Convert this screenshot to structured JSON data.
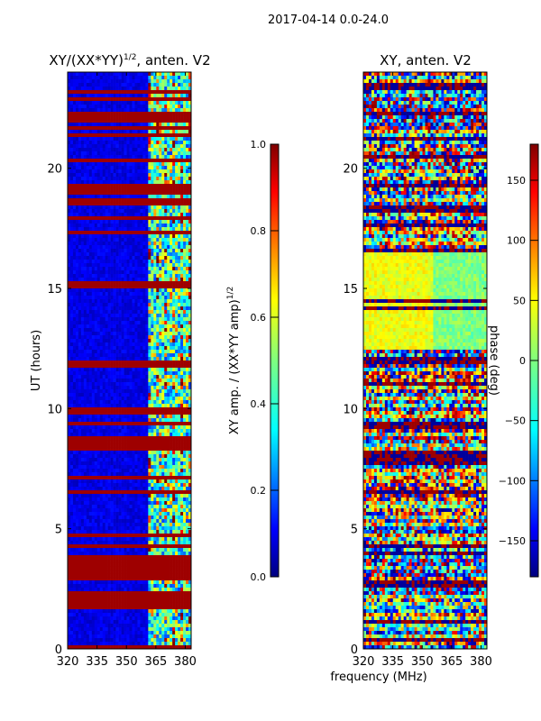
{
  "figure": {
    "suptitle": "2017-04-14 0.0-24.0",
    "shared_xlabel": "frequency (MHz)"
  },
  "colors": {
    "jet_dark_blue": "#00007f",
    "jet_blue": "#0000ff",
    "jet_cyan": "#00ffff",
    "jet_yellow": "#ffff00",
    "jet_red": "#ff0000",
    "jet_dark_red": "#7f0000"
  },
  "chart_data": [
    {
      "type": "heatmap",
      "title_main": "XY/(XX*YY)",
      "title_sup": "1/2",
      "title_tail": ", anten. V2",
      "xlabel": "",
      "ylabel": "UT (hours)",
      "xlim": [
        320,
        383
      ],
      "ylim": [
        0,
        24
      ],
      "xticks": [
        320,
        335,
        350,
        365,
        380
      ],
      "yticks": [
        0,
        5,
        10,
        15,
        20
      ],
      "colorbar": {
        "label_main": "XY amp. / (XX*YY amp)",
        "label_sup": "1/2",
        "range": [
          0.0,
          1.0
        ],
        "ticks": [
          "0.0",
          "0.2",
          "0.4",
          "0.6",
          "0.8",
          "1.0"
        ]
      },
      "features": {
        "low_band_mhz": [
          320,
          361
        ],
        "high_band_mhz": [
          361,
          383
        ],
        "high_band_level": 0.45,
        "flagged_hours": [
          0.05,
          1.7,
          1.9,
          2.05,
          2.2,
          2.35,
          3.0,
          3.3,
          3.6,
          3.75,
          4.3,
          4.7,
          6.5,
          7.1,
          8.3,
          8.45,
          8.6,
          8.75,
          9.4,
          9.9,
          11.8,
          11.95,
          15.1,
          15.2,
          17.3,
          17.9,
          18.6,
          19.0,
          19.2,
          19.3,
          20.3,
          21.4,
          21.7,
          22.0,
          22.2,
          22.9,
          23.2
        ]
      }
    },
    {
      "type": "heatmap",
      "title_main": "XY, anten. V2",
      "xlabel": "frequency (MHz)",
      "ylabel": "",
      "xlim": [
        320,
        383
      ],
      "ylim": [
        0,
        24
      ],
      "xticks": [
        320,
        335,
        350,
        365,
        380
      ],
      "yticks": [
        0,
        5,
        10,
        15,
        20
      ],
      "colorbar": {
        "label": "phase (deg)",
        "range": [
          -180,
          180
        ],
        "ticks": [
          "150",
          "100",
          "50",
          "0",
          "−50",
          "−100",
          "−150"
        ]
      },
      "features": {
        "phase_range_deg": [
          -180,
          180
        ],
        "coherent_band_hours": [
          12.5,
          16.5
        ],
        "flagged_hours": [
          0.4,
          1.1,
          2.6,
          2.8,
          4.0,
          4.3,
          6.5,
          7.8,
          8.1,
          9.3,
          11.0,
          11.9,
          12.1,
          14.2,
          14.5,
          16.6,
          17.6,
          18.3,
          19.3,
          20.5,
          21.2,
          22.3,
          23.4
        ]
      }
    }
  ]
}
